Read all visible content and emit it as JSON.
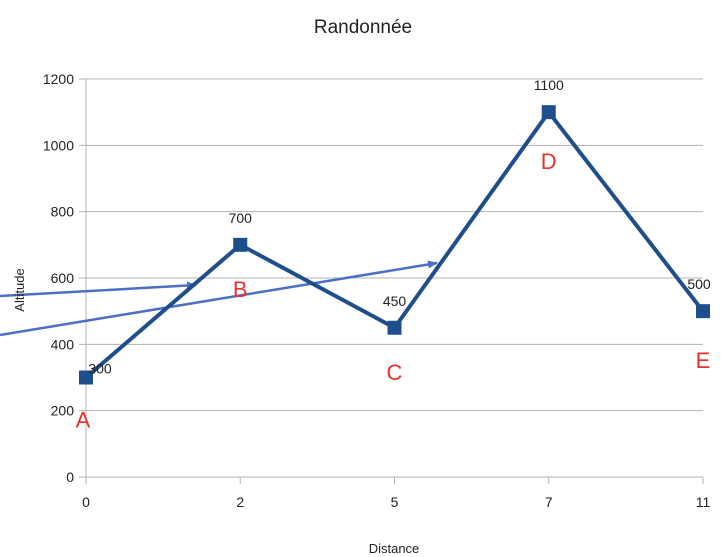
{
  "chart_data": {
    "type": "line",
    "title": "Randonnée",
    "xlabel": "Distance",
    "ylabel": "Altitude",
    "categories": [
      "0",
      "2",
      "5",
      "7",
      "11"
    ],
    "series": [
      {
        "values": [
          300,
          700,
          450,
          1100,
          500
        ]
      }
    ],
    "data_labels": [
      "300",
      "700",
      "450",
      "1100",
      "500"
    ],
    "point_labels": [
      "A",
      "B",
      "C",
      "D",
      "E"
    ],
    "ylim": [
      0,
      1200
    ],
    "yticks": [
      "0",
      "200",
      "400",
      "600",
      "800",
      "1000",
      "1200"
    ],
    "ytick_values": [
      0,
      200,
      400,
      600,
      800,
      1000,
      1200
    ],
    "grid": true,
    "legend": "none",
    "colors": {
      "series": "#1f4e8c",
      "point_label": "#e8302c",
      "arrow": "#4a6fc4"
    }
  }
}
